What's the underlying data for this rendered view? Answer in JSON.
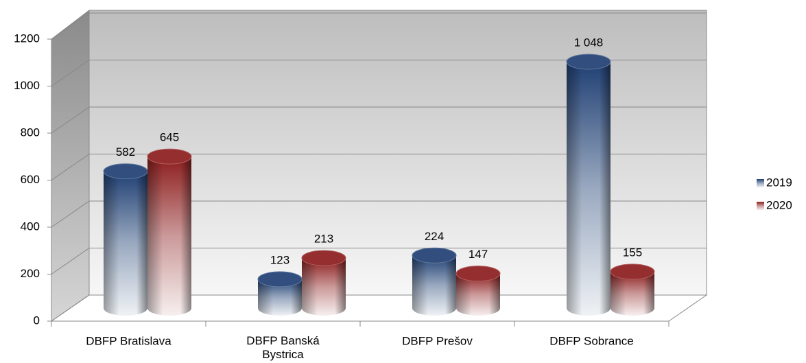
{
  "chart_data": {
    "type": "bar",
    "categories": [
      "DBFP Bratislava",
      "DBFP Banská Bystrica",
      "DBFP Prešov",
      "DBFP Sobrance"
    ],
    "series": [
      {
        "name": "2019",
        "color": "#1f3f73",
        "values": [
          582,
          123,
          224,
          1048
        ],
        "value_labels": [
          "582",
          "123",
          "224",
          "1 048"
        ]
      },
      {
        "name": "2020",
        "color": "#8c1c1c",
        "values": [
          645,
          213,
          147,
          155
        ]
      }
    ],
    "ylim": [
      0,
      1200
    ],
    "yticks": [
      0,
      200,
      400,
      600,
      800,
      1000,
      1200
    ],
    "grid": true,
    "legend": "right"
  }
}
